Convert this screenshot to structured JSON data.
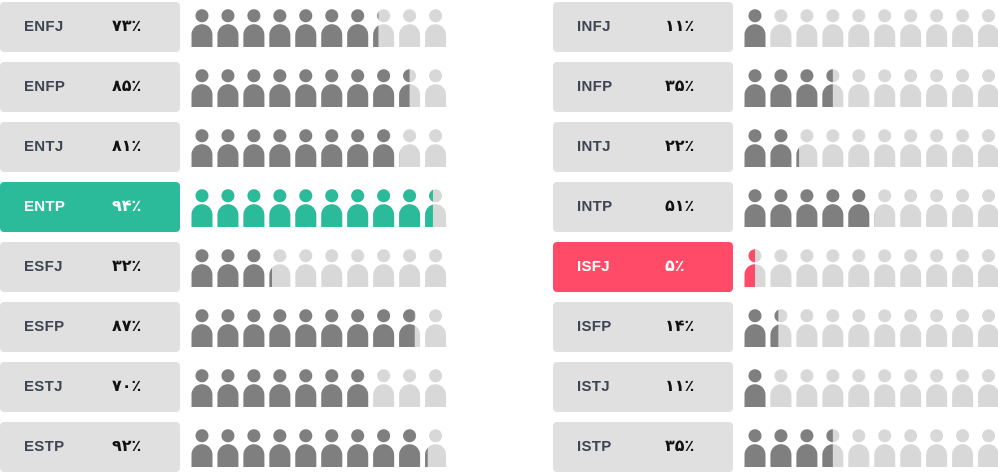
{
  "colors": {
    "filled": "#7f7f7f",
    "empty": "#d8d8d8",
    "label_bg": "#e0e0e0",
    "label_text": "#3f4652",
    "pct_text": "#111111",
    "highlight_max": "#2bba9a",
    "highlight_min": "#ff4a68"
  },
  "chart_data": {
    "type": "bar",
    "unit": "%",
    "icons_per_row": 10,
    "columns": [
      {
        "rows": [
          {
            "type": "ENFJ",
            "value": 73,
            "pct_label": "۷۳٪"
          },
          {
            "type": "ENFP",
            "value": 85,
            "pct_label": "۸۵٪"
          },
          {
            "type": "ENTJ",
            "value": 81,
            "pct_label": "۸۱٪"
          },
          {
            "type": "ENTP",
            "value": 94,
            "pct_label": "۹۴٪",
            "highlight": "max"
          },
          {
            "type": "ESFJ",
            "value": 32,
            "pct_label": "۳۲٪"
          },
          {
            "type": "ESFP",
            "value": 87,
            "pct_label": "۸۷٪"
          },
          {
            "type": "ESTJ",
            "value": 70,
            "pct_label": "۷۰٪"
          },
          {
            "type": "ESTP",
            "value": 92,
            "pct_label": "۹۲٪"
          }
        ]
      },
      {
        "rows": [
          {
            "type": "INFJ",
            "value": 11,
            "pct_label": "۱۱٪"
          },
          {
            "type": "INFP",
            "value": 35,
            "pct_label": "۳۵٪"
          },
          {
            "type": "INTJ",
            "value": 22,
            "pct_label": "۲۲٪"
          },
          {
            "type": "INTP",
            "value": 51,
            "pct_label": "۵۱٪"
          },
          {
            "type": "ISFJ",
            "value": 5,
            "pct_label": "۵٪",
            "highlight": "min"
          },
          {
            "type": "ISFP",
            "value": 14,
            "pct_label": "۱۴٪"
          },
          {
            "type": "ISTJ",
            "value": 11,
            "pct_label": "۱۱٪"
          },
          {
            "type": "ISTP",
            "value": 35,
            "pct_label": "۳۵٪"
          }
        ]
      }
    ]
  }
}
